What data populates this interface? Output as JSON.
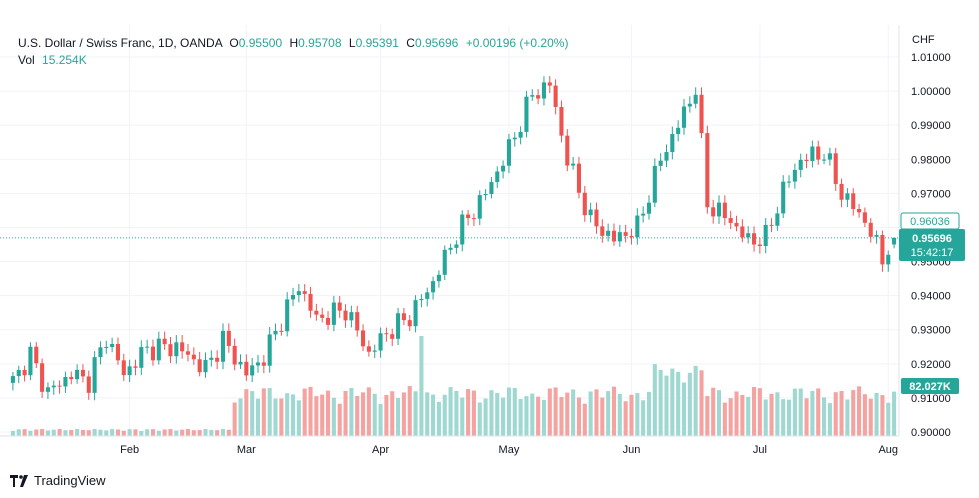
{
  "header": {
    "symbol": "U.S. Dollar / Swiss Franc, 1D, OANDA",
    "o_label": "O",
    "o_value": "0.95500",
    "h_label": "H",
    "h_value": "0.95708",
    "l_label": "L",
    "l_value": "0.95391",
    "c_label": "C",
    "c_value": "0.95696",
    "change": "+0.00196 (+0.20%)",
    "vol_label": "Vol",
    "vol_value": "15.254K"
  },
  "axis": {
    "currency": "CHF",
    "price_ticks": [
      "1.01000",
      "1.00000",
      "0.99000",
      "0.98000",
      "0.97000",
      "0.96000",
      "0.95000",
      "0.94000",
      "0.93000",
      "0.92000",
      "0.91000",
      "0.90000"
    ],
    "months": [
      "Feb",
      "Mar",
      "Apr",
      "May",
      "Jun",
      "Jul",
      "Aug"
    ]
  },
  "badges": {
    "ref_price": "0.96036",
    "last_price": "0.95696",
    "countdown": "15:42:17",
    "volume": "82.027K"
  },
  "brand": {
    "name": "TradingView"
  },
  "colors": {
    "up": "#26a69a",
    "down": "#ef5350",
    "vol_up": "#9fd8d1",
    "vol_down": "#f4a3a1",
    "grid": "#f0f3fa",
    "text": "#131722"
  },
  "chart_data": {
    "type": "candlestick",
    "title": "U.S. Dollar / Swiss Franc, 1D, OANDA",
    "ylabel": "CHF",
    "ylim": [
      0.9,
      1.0115
    ],
    "grid": true,
    "x": [
      "Feb",
      "Mar",
      "Apr",
      "May",
      "Jun",
      "Jul",
      "Aug"
    ],
    "month_positions": [
      {
        "label": "Feb",
        "index": 20
      },
      {
        "label": "Mar",
        "index": 40
      },
      {
        "label": "Apr",
        "index": 63
      },
      {
        "label": "May",
        "index": 85
      },
      {
        "label": "Jun",
        "index": 106
      },
      {
        "label": "Jul",
        "index": 128
      },
      {
        "label": "Aug",
        "index": 150
      }
    ],
    "anchors": [
      [
        0,
        0.915
      ],
      [
        3,
        0.9225
      ],
      [
        6,
        0.9115
      ],
      [
        10,
        0.917
      ],
      [
        13,
        0.915
      ],
      [
        16,
        0.928
      ],
      [
        19,
        0.917
      ],
      [
        23,
        0.9245
      ],
      [
        28,
        0.925
      ],
      [
        33,
        0.9185
      ],
      [
        36,
        0.927
      ],
      [
        40,
        0.917
      ],
      [
        43,
        0.922
      ],
      [
        46,
        0.933
      ],
      [
        49,
        0.943
      ],
      [
        52,
        0.933
      ],
      [
        57,
        0.936
      ],
      [
        61,
        0.923
      ],
      [
        64,
        0.929
      ],
      [
        68,
        0.934
      ],
      [
        72,
        0.944
      ],
      [
        76,
        0.958
      ],
      [
        81,
        0.97
      ],
      [
        85,
        0.983
      ],
      [
        89,
        0.999
      ],
      [
        92,
        1.002
      ],
      [
        95,
        0.98
      ],
      [
        99,
        0.962
      ],
      [
        103,
        0.9565
      ],
      [
        107,
        0.96
      ],
      [
        111,
        0.98
      ],
      [
        114,
        0.99
      ],
      [
        117,
        1.001
      ],
      [
        119,
        0.967
      ],
      [
        123,
        0.962
      ],
      [
        126,
        0.956
      ],
      [
        129,
        0.957
      ],
      [
        132,
        0.971
      ],
      [
        135,
        0.98
      ],
      [
        139,
        0.982
      ],
      [
        142,
        0.97
      ],
      [
        146,
        0.962
      ],
      [
        149,
        0.951
      ],
      [
        151,
        0.957
      ]
    ],
    "last": {
      "open": 0.955,
      "high": 0.95708,
      "low": 0.95391,
      "close": 0.95696,
      "volume": "15.254K"
    },
    "volume_level": "82.027K"
  }
}
